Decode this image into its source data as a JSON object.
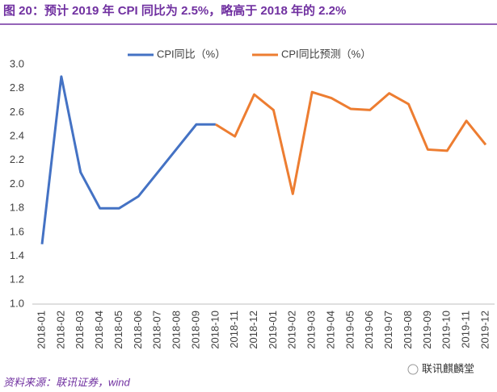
{
  "chart_data": {
    "type": "line",
    "title": "图 20：预计 2019 年 CPI 同比为 2.5%，略高于 2018 年的 2.2%",
    "source": "资料来源：联讯证券，wind",
    "watermark": "联讯麒麟堂",
    "categories": [
      "2018-01",
      "2018-02",
      "2018-03",
      "2018-04",
      "2018-05",
      "2018-06",
      "2018-07",
      "2018-08",
      "2018-09",
      "2018-10",
      "2018-11",
      "2018-12",
      "2019-01",
      "2019-02",
      "2019-03",
      "2019-04",
      "2019-05",
      "2019-06",
      "2019-07",
      "2019-08",
      "2019-09",
      "2019-10",
      "2019-11",
      "2019-12"
    ],
    "series": [
      {
        "name": "CPI同比（%）",
        "color": "#4472c4",
        "values": [
          1.5,
          2.9,
          2.1,
          1.8,
          1.8,
          1.9,
          2.1,
          2.3,
          2.5,
          2.5,
          null,
          null,
          null,
          null,
          null,
          null,
          null,
          null,
          null,
          null,
          null,
          null,
          null,
          null
        ]
      },
      {
        "name": "CPI同比预测（%）",
        "color": "#ed7d31",
        "values": [
          null,
          null,
          null,
          null,
          null,
          null,
          null,
          null,
          null,
          2.5,
          2.4,
          2.75,
          2.62,
          1.92,
          2.77,
          2.72,
          2.63,
          2.62,
          2.76,
          2.67,
          2.29,
          2.28,
          2.53,
          2.33
        ]
      }
    ],
    "ylim": [
      1.0,
      3.0
    ],
    "yticks": [
      {
        "value": 1.0,
        "label": "1.0"
      },
      {
        "value": 1.2,
        "label": "1.2"
      },
      {
        "value": 1.4,
        "label": "1.4"
      },
      {
        "value": 1.6,
        "label": "1.6"
      },
      {
        "value": 1.8,
        "label": "1.8"
      },
      {
        "value": 2.0,
        "label": "2.0"
      },
      {
        "value": 2.2,
        "label": "2.2"
      },
      {
        "value": 2.4,
        "label": "2.4"
      },
      {
        "value": 2.6,
        "label": "2.6"
      },
      {
        "value": 2.8,
        "label": "2.8"
      },
      {
        "value": 3.0,
        "label": "3.0"
      }
    ],
    "grid": false,
    "legend": "top"
  }
}
